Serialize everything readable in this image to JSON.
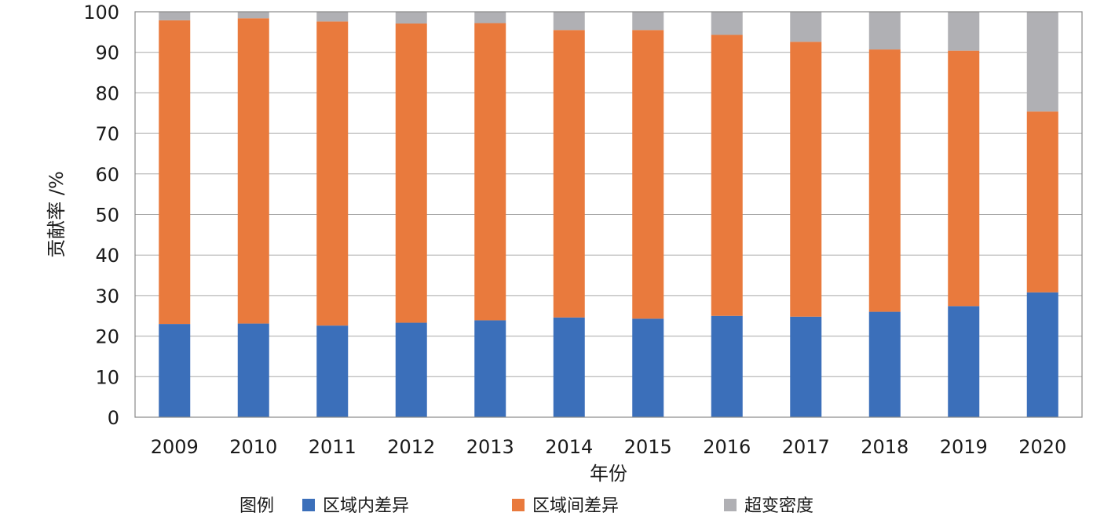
{
  "chart_data": {
    "type": "bar",
    "stacked": true,
    "categories": [
      "2009",
      "2010",
      "2011",
      "2012",
      "2013",
      "2014",
      "2015",
      "2016",
      "2017",
      "2018",
      "2019",
      "2020"
    ],
    "series": [
      {
        "name": "区域内差异",
        "color": "#3b6fba",
        "values": [
          23.0,
          23.1,
          22.6,
          23.3,
          23.9,
          24.6,
          24.3,
          25.0,
          24.8,
          26.0,
          27.4,
          30.8
        ]
      },
      {
        "name": "区域间差异",
        "color": "#e97a3d",
        "values": [
          74.9,
          75.3,
          75.0,
          73.8,
          73.3,
          70.9,
          71.2,
          69.3,
          67.8,
          64.7,
          63.0,
          44.6
        ]
      },
      {
        "name": "超变密度",
        "color": "#b0b0b4",
        "values": [
          2.1,
          1.6,
          2.4,
          2.9,
          2.8,
          4.5,
          4.5,
          5.7,
          7.4,
          9.3,
          9.6,
          24.6
        ]
      }
    ],
    "xlabel": "年份",
    "ylabel": "贡献率 /%",
    "ylim": [
      0,
      100
    ],
    "yticks": [
      0,
      10,
      20,
      30,
      40,
      50,
      60,
      70,
      80,
      90,
      100
    ],
    "grid": true,
    "legend": {
      "title": "图例",
      "position": "bottom"
    }
  }
}
